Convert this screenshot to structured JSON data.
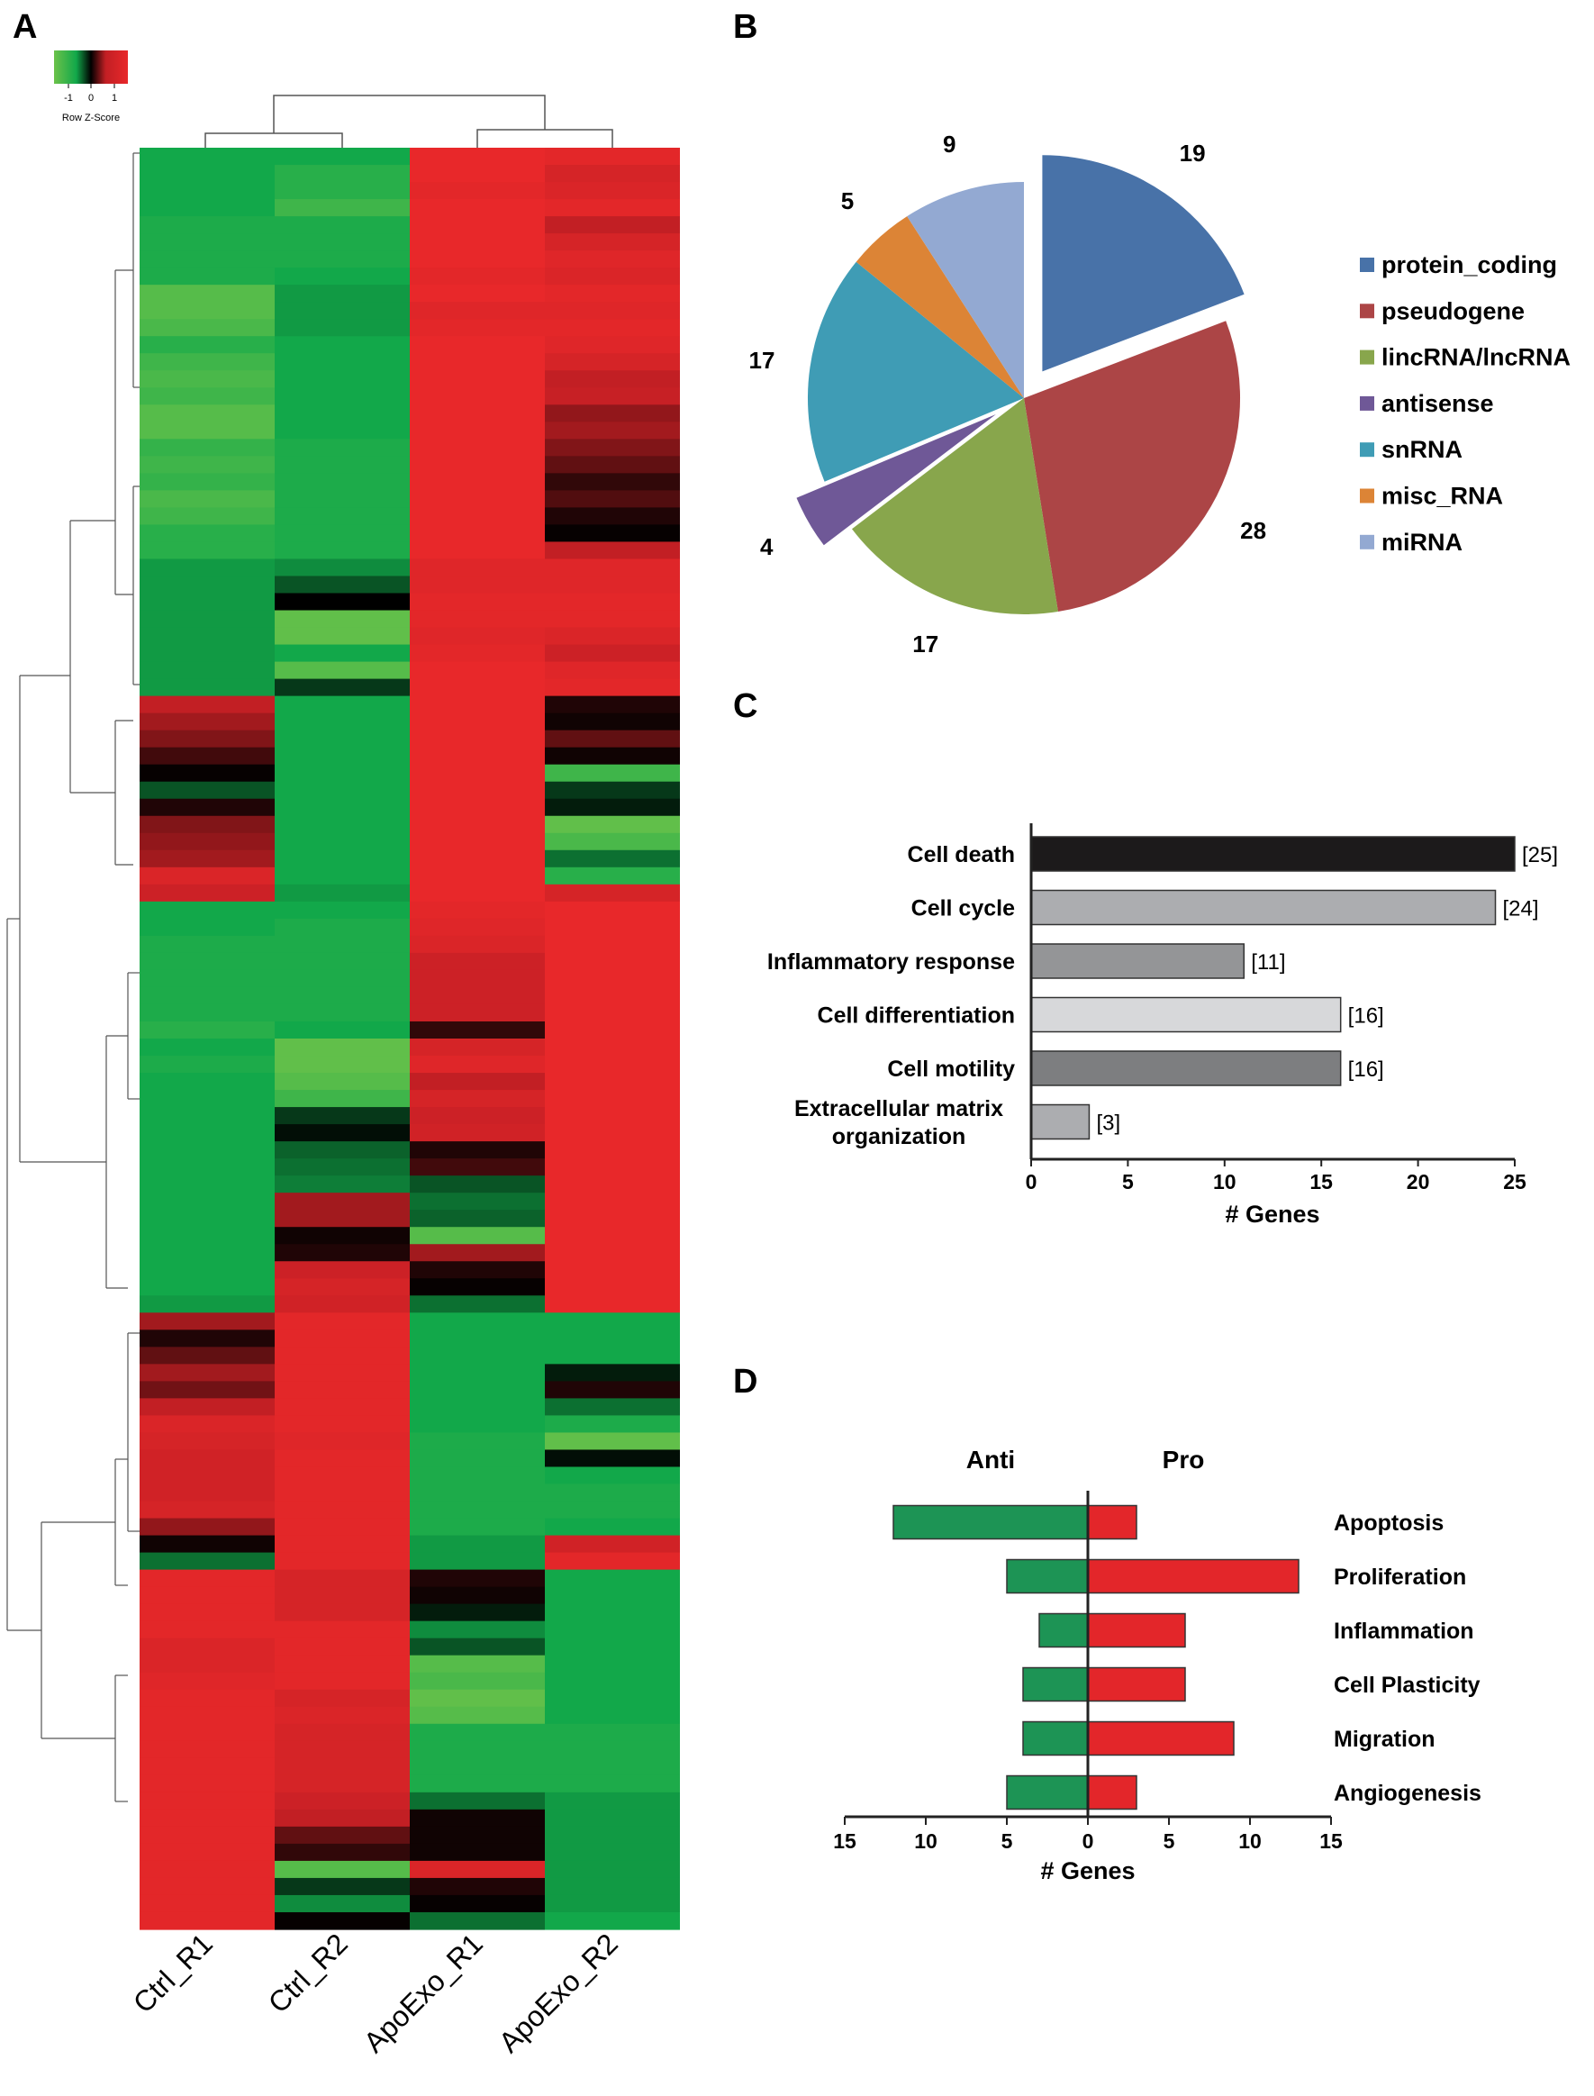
{
  "panels": {
    "a": "A",
    "b": "B",
    "c": "C",
    "d": "D"
  },
  "heatmap": {
    "columns": [
      "Ctrl_R1",
      "Ctrl_R2",
      "ApoExo_R1",
      "ApoExo_R2"
    ],
    "legend": {
      "title": "Row Z-Score",
      "ticks": [
        "-1",
        "0",
        "1"
      ],
      "colors": [
        "#6cc24a",
        "#12a84a",
        "#000000",
        "#c21f24",
        "#e8282a"
      ]
    },
    "rows": [
      [
        -0.6,
        -0.6,
        1,
        0.95
      ],
      [
        -0.6,
        -0.7,
        1,
        0.8
      ],
      [
        -0.6,
        -0.7,
        0.95,
        0.85
      ],
      [
        -0.6,
        -0.8,
        1,
        0.95
      ],
      [
        -0.65,
        -0.65,
        1,
        0.6
      ],
      [
        -0.65,
        -0.65,
        1,
        0.8
      ],
      [
        -0.65,
        -0.65,
        1,
        0.9
      ],
      [
        -0.65,
        -0.6,
        0.95,
        0.85
      ],
      [
        -0.9,
        -0.55,
        1,
        0.95
      ],
      [
        -0.9,
        -0.55,
        0.9,
        0.9
      ],
      [
        -0.85,
        -0.55,
        0.95,
        0.95
      ],
      [
        -0.7,
        -0.6,
        1,
        0.9
      ],
      [
        -0.8,
        -0.6,
        1,
        0.8
      ],
      [
        -0.85,
        -0.6,
        1,
        0.6
      ],
      [
        -0.8,
        -0.6,
        1,
        0.65
      ],
      [
        -0.9,
        -0.6,
        1,
        0.45
      ],
      [
        -0.9,
        -0.6,
        1,
        0.5
      ],
      [
        -0.75,
        -0.65,
        1,
        0.4
      ],
      [
        -0.8,
        -0.65,
        1,
        0.3
      ],
      [
        -0.75,
        -0.65,
        1,
        0.15
      ],
      [
        -0.85,
        -0.65,
        1,
        0.25
      ],
      [
        -0.8,
        -0.65,
        1,
        0.1
      ],
      [
        -0.7,
        -0.65,
        1,
        0.02
      ],
      [
        -0.7,
        -0.65,
        1,
        0.6
      ],
      [
        -0.55,
        -0.5,
        0.9,
        0.9
      ],
      [
        -0.55,
        -0.3,
        0.9,
        0.9
      ],
      [
        -0.55,
        0,
        0.95,
        0.95
      ],
      [
        -0.55,
        -0.95,
        0.95,
        0.95
      ],
      [
        -0.55,
        -0.95,
        0.9,
        0.85
      ],
      [
        -0.55,
        -0.6,
        0.95,
        0.7
      ],
      [
        -0.55,
        -0.9,
        1,
        0.9
      ],
      [
        -0.55,
        -0.2,
        1,
        0.95
      ],
      [
        0.6,
        -0.6,
        1,
        0.1
      ],
      [
        0.5,
        -0.6,
        1,
        0.05
      ],
      [
        0.4,
        -0.6,
        1,
        0.3
      ],
      [
        0.2,
        -0.6,
        1,
        0.05
      ],
      [
        0.02,
        -0.6,
        1,
        -0.8
      ],
      [
        -0.3,
        -0.6,
        1,
        -0.2
      ],
      [
        0.1,
        -0.6,
        1,
        -0.1
      ],
      [
        0.4,
        -0.6,
        1,
        -0.95
      ],
      [
        0.45,
        -0.6,
        1,
        -0.85
      ],
      [
        0.5,
        -0.6,
        1,
        -0.4
      ],
      [
        0.85,
        -0.6,
        1,
        -0.7
      ],
      [
        0.7,
        -0.55,
        1,
        0.8
      ],
      [
        -0.6,
        -0.6,
        0.95,
        1
      ],
      [
        -0.6,
        -0.65,
        0.9,
        1
      ],
      [
        -0.65,
        -0.65,
        0.85,
        1
      ],
      [
        -0.65,
        -0.65,
        0.7,
        1
      ],
      [
        -0.65,
        -0.65,
        0.7,
        1
      ],
      [
        -0.65,
        -0.65,
        0.7,
        1
      ],
      [
        -0.65,
        -0.65,
        0.7,
        1
      ],
      [
        -0.7,
        -0.6,
        0.15,
        1
      ],
      [
        -0.6,
        -0.95,
        0.8,
        1
      ],
      [
        -0.65,
        -0.95,
        0.9,
        1
      ],
      [
        -0.6,
        -0.9,
        0.6,
        1
      ],
      [
        -0.6,
        -0.8,
        0.8,
        1
      ],
      [
        -0.6,
        -0.2,
        0.7,
        1
      ],
      [
        -0.6,
        -0.05,
        0.75,
        1
      ],
      [
        -0.6,
        -0.35,
        0.1,
        1
      ],
      [
        -0.6,
        -0.4,
        0.2,
        1
      ],
      [
        -0.6,
        -0.45,
        -0.3,
        1
      ],
      [
        -0.6,
        0.5,
        -0.4,
        1
      ],
      [
        -0.6,
        0.5,
        -0.35,
        1
      ],
      [
        -0.6,
        0.05,
        -0.9,
        1
      ],
      [
        -0.6,
        0.1,
        0.5,
        1
      ],
      [
        -0.6,
        0.7,
        0.1,
        1
      ],
      [
        -0.6,
        0.8,
        0.02,
        1
      ],
      [
        -0.55,
        0.75,
        -0.4,
        1
      ],
      [
        0.5,
        0.95,
        -0.6,
        -0.6
      ],
      [
        0.1,
        0.95,
        -0.6,
        -0.6
      ],
      [
        0.3,
        0.95,
        -0.6,
        -0.6
      ],
      [
        0.5,
        0.95,
        -0.6,
        -0.1
      ],
      [
        0.35,
        0.95,
        -0.6,
        0.1
      ],
      [
        0.6,
        0.95,
        -0.6,
        -0.4
      ],
      [
        0.85,
        0.95,
        -0.6,
        -0.65
      ],
      [
        0.8,
        0.9,
        -0.65,
        -0.95
      ],
      [
        0.75,
        0.95,
        -0.65,
        -0.05
      ],
      [
        0.75,
        0.95,
        -0.65,
        -0.6
      ],
      [
        0.75,
        0.95,
        -0.65,
        -0.65
      ],
      [
        0.8,
        0.95,
        -0.65,
        -0.65
      ],
      [
        0.45,
        0.95,
        -0.65,
        -0.6
      ],
      [
        0.05,
        0.95,
        -0.55,
        0.75
      ],
      [
        -0.4,
        0.95,
        -0.55,
        0.95
      ],
      [
        0.95,
        0.8,
        0.1,
        -0.6
      ],
      [
        0.95,
        0.8,
        0.05,
        -0.6
      ],
      [
        0.95,
        0.8,
        -0.1,
        -0.6
      ],
      [
        0.95,
        0.95,
        -0.5,
        -0.6
      ],
      [
        0.85,
        0.95,
        -0.3,
        -0.6
      ],
      [
        0.85,
        0.95,
        -0.9,
        -0.6
      ],
      [
        0.9,
        0.95,
        -0.85,
        -0.6
      ],
      [
        0.95,
        0.8,
        -0.95,
        -0.6
      ],
      [
        0.95,
        0.85,
        -0.9,
        -0.6
      ],
      [
        0.95,
        0.8,
        -0.65,
        -0.65
      ],
      [
        0.95,
        0.8,
        -0.65,
        -0.65
      ],
      [
        0.95,
        0.8,
        -0.65,
        -0.65
      ],
      [
        0.95,
        0.8,
        -0.65,
        -0.65
      ],
      [
        0.95,
        0.7,
        -0.4,
        -0.55
      ],
      [
        0.95,
        0.6,
        0.05,
        -0.55
      ],
      [
        0.95,
        0.3,
        0.05,
        -0.55
      ],
      [
        0.95,
        0.15,
        0.05,
        -0.55
      ],
      [
        0.95,
        -0.9,
        0.85,
        -0.55
      ],
      [
        0.95,
        -0.2,
        0.1,
        -0.55
      ],
      [
        0.95,
        -0.5,
        0.02,
        -0.55
      ],
      [
        0.95,
        0.02,
        -0.4,
        -0.6
      ]
    ]
  },
  "chart_data": [
    {
      "type": "pie",
      "panel": "B",
      "slices": [
        {
          "label": "protein_coding",
          "value": 19,
          "color": "#4872a8",
          "exploded": true
        },
        {
          "label": "pseudogene",
          "value": 28,
          "color": "#ac4546",
          "exploded": false
        },
        {
          "label": "lincRNA/lncRNA",
          "value": 17,
          "color": "#88a64c",
          "exploded": false
        },
        {
          "label": "antisense",
          "value": 4,
          "color": "#6f5897",
          "exploded": true
        },
        {
          "label": "snRNA",
          "value": 17,
          "color": "#3f9cb5",
          "exploded": false
        },
        {
          "label": "misc_RNA",
          "value": 5,
          "color": "#dc8436",
          "exploded": false
        },
        {
          "label": "miRNA",
          "value": 9,
          "color": "#93a9d2",
          "exploded": false
        }
      ],
      "legend_position": "right"
    },
    {
      "type": "bar",
      "panel": "C",
      "orientation": "horizontal",
      "categories": [
        "Cell death",
        "Cell cycle",
        "Inflammatory response",
        "Cell differentiation",
        "Cell motility",
        "Extracellular matrix organization"
      ],
      "category_lines": [
        [
          "Cell death"
        ],
        [
          "Cell cycle"
        ],
        [
          "Inflammatory response"
        ],
        [
          "Cell differentiation"
        ],
        [
          "Cell motility"
        ],
        [
          "Extracellular matrix",
          "organization"
        ]
      ],
      "values": [
        25,
        24,
        11,
        16,
        16,
        3
      ],
      "value_labels": [
        "[25]",
        "[24]",
        "[11]",
        "[16]",
        "[16]",
        "[3]"
      ],
      "colors": [
        "#1c1a1b",
        "#acadb0",
        "#949597",
        "#d7d8da",
        "#7d7e80",
        "#acadb0"
      ],
      "xlabel": "# Genes",
      "xlim": [
        0,
        25
      ],
      "xticks": [
        0,
        5,
        10,
        15,
        20,
        25
      ]
    },
    {
      "type": "bar",
      "panel": "D",
      "orientation": "diverging-horizontal",
      "categories": [
        "Apoptosis",
        "Proliferation",
        "Inflammation",
        "Cell Plasticity",
        "Migration",
        "Angiogenesis"
      ],
      "series": [
        {
          "name": "Anti",
          "values": [
            12,
            5,
            3,
            4,
            4,
            5
          ],
          "color": "#1d9455"
        },
        {
          "name": "Pro",
          "values": [
            3,
            13,
            6,
            6,
            9,
            3
          ],
          "color": "#e3262a"
        }
      ],
      "xlabel": "# Genes",
      "xlim": [
        -15,
        15
      ],
      "xticks": [
        15,
        10,
        5,
        0,
        5,
        10,
        15
      ]
    }
  ]
}
